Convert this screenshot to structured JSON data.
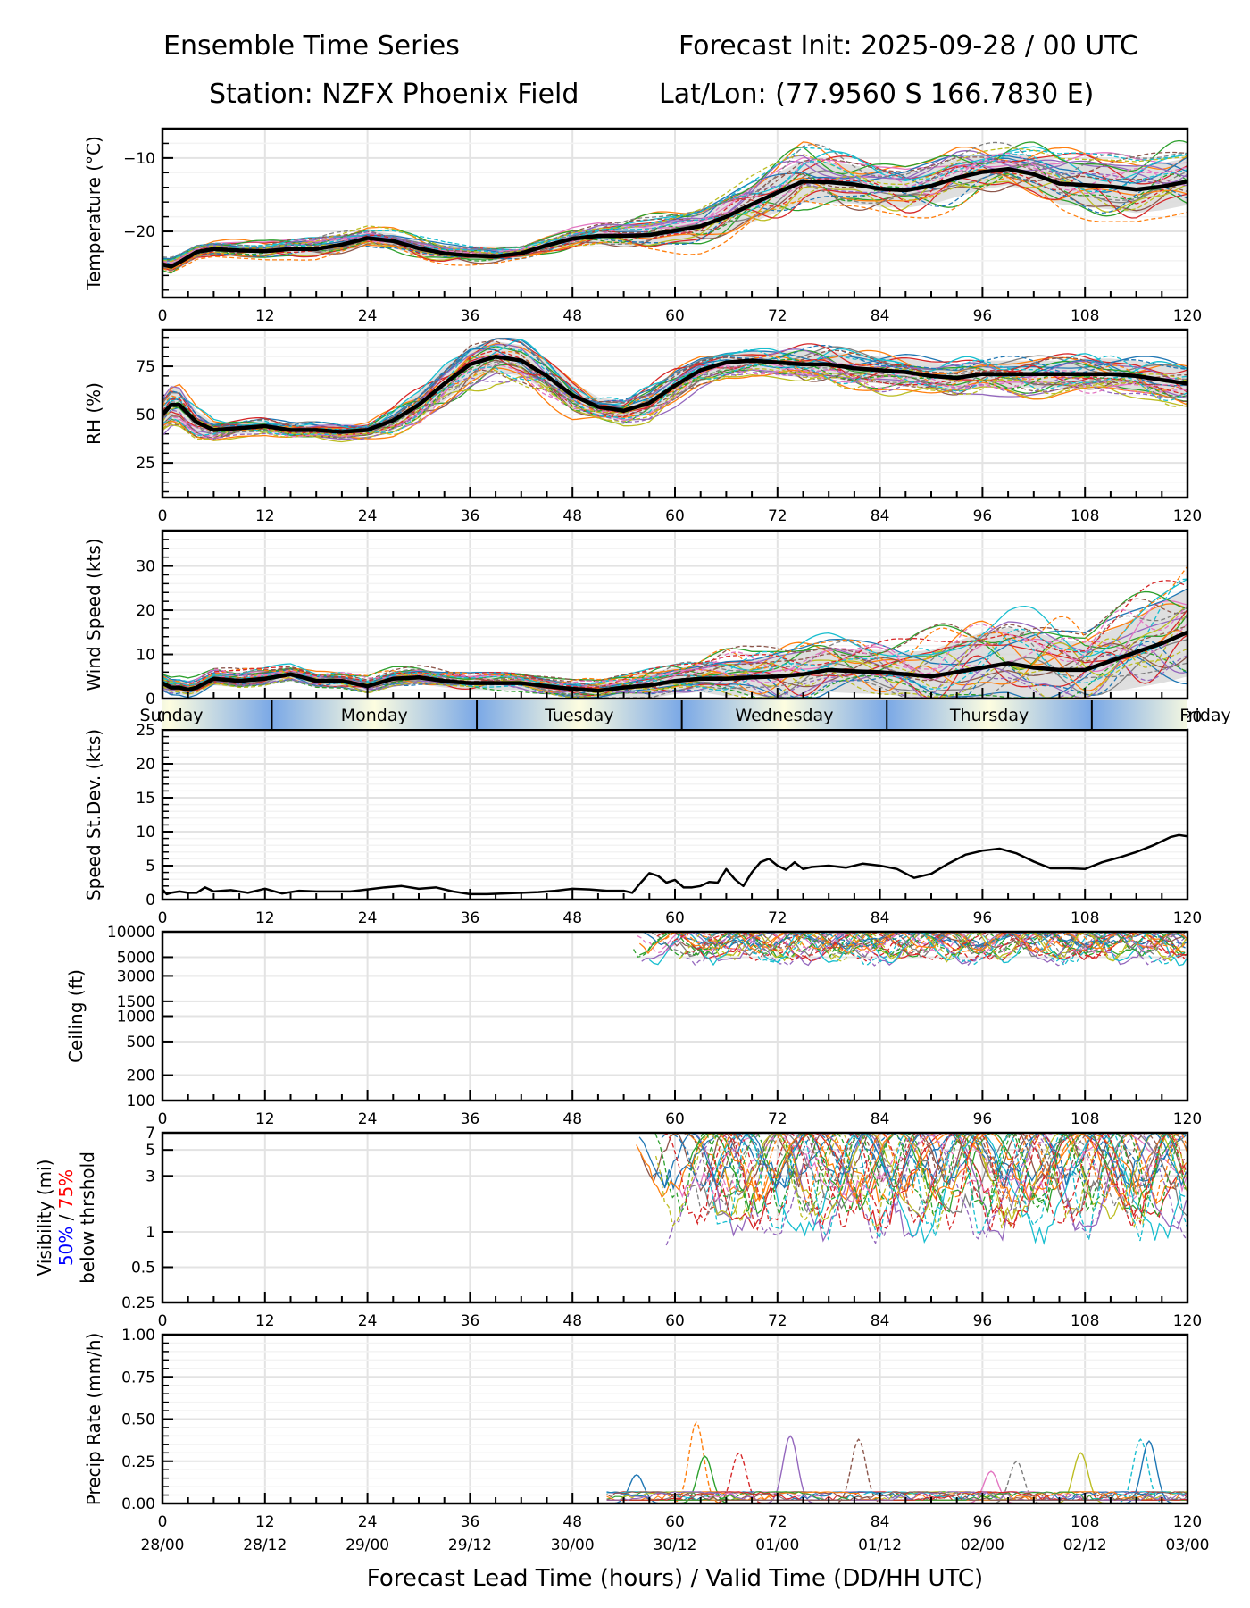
{
  "header": {
    "title_left": "Ensemble Time Series",
    "title_right": "Forecast Init: 2025-09-28 / 00 UTC",
    "station": "Station: NZFX Phoenix Field",
    "latlon": "Lat/Lon: (77.9560 S 166.7830 E)"
  },
  "xaxis": {
    "label": "Forecast Lead Time (hours) / Valid Time (DD/HH UTC)",
    "range": [
      0,
      120
    ],
    "ticks": [
      0,
      12,
      24,
      36,
      48,
      60,
      72,
      84,
      96,
      108,
      120
    ],
    "tick_labels": [
      "0",
      "12",
      "24",
      "36",
      "48",
      "60",
      "72",
      "84",
      "96",
      "108",
      "120"
    ],
    "valid_time_labels": [
      "28/00",
      "28/12",
      "29/00",
      "29/12",
      "30/00",
      "30/12",
      "01/00",
      "01/12",
      "02/00",
      "02/12",
      "03/00"
    ]
  },
  "day_band": {
    "days": [
      "Sunday",
      "Monday",
      "Tuesday",
      "Wednesday",
      "Thursday",
      "Friday"
    ],
    "boundaries_hours": [
      12.8,
      36.8,
      60.8,
      84.8,
      108.8
    ],
    "colors": {
      "day": "#fdfde0",
      "night": "#7aa8e6"
    }
  },
  "visibility_label": {
    "line1": "Visibility (mi)",
    "pct50": "50%",
    "sep": " / ",
    "pct75": "75%",
    "line3": "below thrshold",
    "pct50_color": "#0000ff",
    "pct75_color": "#ff0000"
  },
  "chart_data": [
    {
      "type": "line",
      "name": "temperature",
      "ylabel": "Temperature (°C)",
      "ylim": [
        -29,
        -6
      ],
      "yticks": [
        -10,
        -20
      ],
      "ytick_labels": [
        "−10",
        "−20"
      ],
      "grid": true,
      "mean": {
        "x": [
          0,
          1,
          2,
          4,
          6,
          9,
          12,
          15,
          18,
          21,
          24,
          27,
          30,
          33,
          36,
          39,
          42,
          45,
          48,
          51,
          54,
          57,
          60,
          63,
          66,
          69,
          72,
          75,
          78,
          81,
          84,
          87,
          90,
          93,
          96,
          99,
          102,
          105,
          108,
          111,
          114,
          117,
          120
        ],
        "y": [
          -24.5,
          -24.8,
          -24.2,
          -22.8,
          -22.4,
          -22.6,
          -22.7,
          -22.4,
          -22.4,
          -21.8,
          -20.9,
          -21.3,
          -22.3,
          -23.0,
          -23.3,
          -23.4,
          -23.0,
          -21.9,
          -21.0,
          -20.6,
          -20.6,
          -20.5,
          -19.9,
          -19.3,
          -18.0,
          -16.3,
          -14.7,
          -13.2,
          -13.3,
          -13.6,
          -14.2,
          -14.4,
          -13.8,
          -12.7,
          -11.9,
          -11.5,
          -12.2,
          -13.5,
          -13.7,
          -13.9,
          -14.3,
          -13.9,
          -13.2
        ]
      },
      "spread_halfwidth": [
        0.6,
        0.8,
        0.8,
        0.8,
        0.8,
        0.8,
        0.8,
        0.9,
        1.0,
        1.0,
        1.0,
        1.0,
        1.0,
        0.9,
        0.8,
        0.7,
        0.6,
        0.8,
        1.0,
        1.2,
        1.3,
        1.6,
        1.8,
        2.0,
        2.3,
        2.5,
        2.7,
        2.9,
        2.8,
        2.6,
        2.5,
        2.4,
        2.5,
        2.6,
        2.4,
        2.2,
        2.5,
        2.8,
        3.0,
        3.1,
        3.2,
        3.2,
        3.2
      ]
    },
    {
      "type": "line",
      "name": "relative_humidity",
      "ylabel": "RH (%)",
      "ylim": [
        7,
        94
      ],
      "yticks": [
        25,
        50,
        75
      ],
      "ytick_labels": [
        "25",
        "50",
        "75"
      ],
      "grid": true,
      "mean": {
        "x": [
          0,
          1,
          2,
          4,
          6,
          9,
          12,
          15,
          18,
          21,
          24,
          27,
          30,
          33,
          36,
          39,
          42,
          45,
          48,
          51,
          54,
          57,
          60,
          63,
          66,
          69,
          72,
          75,
          78,
          81,
          84,
          87,
          90,
          93,
          96,
          99,
          102,
          105,
          108,
          111,
          114,
          117,
          120
        ],
        "y": [
          50,
          55,
          55,
          46,
          42,
          43,
          44,
          42,
          42,
          41,
          42,
          47,
          55,
          66,
          76,
          80,
          78,
          70,
          60,
          54,
          52,
          56,
          65,
          73,
          77,
          78,
          77,
          76,
          76,
          74,
          73,
          72,
          70,
          69,
          71,
          71,
          71,
          71,
          71,
          71,
          70,
          68,
          66
        ]
      },
      "spread_halfwidth": [
        8,
        9,
        9,
        6,
        4,
        3,
        3,
        3,
        3,
        3,
        3,
        5,
        7,
        9,
        9,
        8,
        8,
        8,
        7,
        5,
        5,
        6,
        7,
        6,
        5,
        5,
        6,
        7,
        7,
        7,
        7,
        7,
        7,
        7,
        7,
        7,
        7,
        7,
        8,
        8,
        8,
        8,
        8
      ]
    },
    {
      "type": "line",
      "name": "wind_speed",
      "ylabel": "Wind Speed (kts)",
      "ylim": [
        0,
        38
      ],
      "yticks": [
        0,
        10,
        20,
        30
      ],
      "ytick_labels": [
        "0",
        "10",
        "20",
        "30"
      ],
      "grid": true,
      "mean": {
        "x": [
          0,
          1,
          2,
          3,
          4,
          6,
          9,
          12,
          15,
          18,
          21,
          24,
          27,
          30,
          33,
          36,
          39,
          42,
          45,
          48,
          51,
          54,
          57,
          60,
          63,
          66,
          69,
          72,
          75,
          78,
          81,
          84,
          87,
          90,
          93,
          96,
          99,
          102,
          105,
          108,
          111,
          114,
          117,
          120
        ],
        "y": [
          3.5,
          2.5,
          2.5,
          2.0,
          2.5,
          4.5,
          4.0,
          4.5,
          5.5,
          4.0,
          4.0,
          2.8,
          4.5,
          4.8,
          4.0,
          3.5,
          3.5,
          3.5,
          2.8,
          2.2,
          1.8,
          2.5,
          3.0,
          4.0,
          4.5,
          4.5,
          4.8,
          5.0,
          5.5,
          6.5,
          6.2,
          6.0,
          5.5,
          5.0,
          6.0,
          7.0,
          8.0,
          7.0,
          6.5,
          6.5,
          8.5,
          10.5,
          12.5,
          15.0
        ]
      },
      "spread_halfwidth": [
        1.5,
        1.5,
        1.5,
        1.5,
        1.5,
        1.5,
        1.5,
        1.5,
        1.5,
        1.5,
        1.5,
        1.5,
        1.5,
        1.5,
        1.5,
        1.5,
        1.5,
        1.5,
        1.5,
        1.5,
        1.5,
        2,
        3,
        3,
        3,
        4,
        4,
        5,
        5,
        5,
        5,
        5,
        5,
        6,
        7,
        8,
        8,
        8,
        7,
        6,
        7,
        8,
        9,
        10
      ]
    },
    {
      "type": "line",
      "name": "speed_stdev",
      "ylabel": "Speed St.Dev. (kts)",
      "ylim": [
        0,
        25
      ],
      "yticks": [
        0,
        5,
        10,
        15,
        20,
        25
      ],
      "ytick_labels": [
        "0",
        "5",
        "10",
        "15",
        "20",
        "25"
      ],
      "grid": true,
      "series": [
        {
          "name": "stdev",
          "x": [
            0,
            0.5,
            1,
            2,
            3,
            4,
            5,
            6,
            8,
            10,
            12,
            14,
            16,
            18,
            20,
            22,
            24,
            26,
            28,
            30,
            32,
            34,
            36,
            38,
            40,
            42,
            44,
            46,
            48,
            50,
            52,
            54,
            55,
            56,
            57,
            58,
            59,
            60,
            61,
            62,
            63,
            64,
            65,
            66,
            67,
            68,
            69,
            70,
            71,
            72,
            73,
            74,
            75,
            76,
            78,
            80,
            82,
            84,
            86,
            88,
            90,
            92,
            94,
            96,
            98,
            100,
            102,
            104,
            106,
            108,
            110,
            112,
            114,
            116,
            118,
            119,
            120
          ],
          "y": [
            1.5,
            0.8,
            1.0,
            1.2,
            1.0,
            1.0,
            1.8,
            1.2,
            1.4,
            1.0,
            1.6,
            0.9,
            1.3,
            1.2,
            1.2,
            1.2,
            1.5,
            1.8,
            2.0,
            1.6,
            1.8,
            1.2,
            0.8,
            0.8,
            0.9,
            1.0,
            1.1,
            1.3,
            1.6,
            1.5,
            1.3,
            1.3,
            1.0,
            2.5,
            3.9,
            3.5,
            2.5,
            2.9,
            1.8,
            1.8,
            2.0,
            2.6,
            2.5,
            4.5,
            3.0,
            2.0,
            4.0,
            5.5,
            6.0,
            5.0,
            4.4,
            5.5,
            4.5,
            4.8,
            5.0,
            4.7,
            5.3,
            5.0,
            4.5,
            3.2,
            3.8,
            5.3,
            6.6,
            7.2,
            7.5,
            6.8,
            5.6,
            4.6,
            4.6,
            4.5,
            5.5,
            6.2,
            7.0,
            8.0,
            9.2,
            9.5,
            9.3
          ]
        }
      ]
    },
    {
      "type": "line",
      "name": "ceiling",
      "ylabel": "Ceiling (ft)",
      "yscale": "log",
      "ylim": [
        100,
        10000
      ],
      "yticks": [
        100,
        200,
        500,
        1000,
        1500,
        3000,
        5000,
        10000
      ],
      "ytick_labels": [
        "100",
        "200",
        "500",
        "1000",
        "1500",
        "3000",
        "5000",
        "10000"
      ],
      "grid": true,
      "note": "Member traces present only from ~54h onward, between ~4000 and 10000 ft",
      "member_envelope": {
        "x_start": 54,
        "x_end": 120,
        "y_min": 3900,
        "y_max": 10000
      }
    },
    {
      "type": "line",
      "name": "visibility",
      "ylabel": "Visibility (mi) 50% / 75% below thrshold",
      "yscale": "log",
      "ylim": [
        0.25,
        7
      ],
      "yticks": [
        0.25,
        0.5,
        1,
        3,
        5,
        7
      ],
      "ytick_labels": [
        "0.25",
        "0.5",
        "1",
        "3",
        "5",
        "7"
      ],
      "grid": true,
      "note": "Member traces present only from ~55h onward, between ~0.75 and 7 mi",
      "member_envelope": {
        "x_start": 55,
        "x_end": 120,
        "y_min": 0.75,
        "y_max": 7
      }
    },
    {
      "type": "line",
      "name": "precip_rate",
      "ylabel": "Precip Rate (mm/h)",
      "ylim": [
        0,
        1
      ],
      "yticks": [
        0,
        0.25,
        0.5,
        0.75,
        1.0
      ],
      "ytick_labels": [
        "0.00",
        "0.25",
        "0.50",
        "0.75",
        "1.00"
      ],
      "grid": true,
      "note": "Member traces near zero before ~52h; peaks up to ~0.48 mm/h",
      "peaks": [
        {
          "x": 55.5,
          "y": 0.17
        },
        {
          "x": 62.5,
          "y": 0.48
        },
        {
          "x": 63.5,
          "y": 0.28
        },
        {
          "x": 67.5,
          "y": 0.3
        },
        {
          "x": 73.5,
          "y": 0.4
        },
        {
          "x": 81.5,
          "y": 0.38
        },
        {
          "x": 97,
          "y": 0.19
        },
        {
          "x": 100,
          "y": 0.25
        },
        {
          "x": 107.5,
          "y": 0.3
        },
        {
          "x": 114.5,
          "y": 0.38
        },
        {
          "x": 115.5,
          "y": 0.37
        }
      ]
    }
  ]
}
